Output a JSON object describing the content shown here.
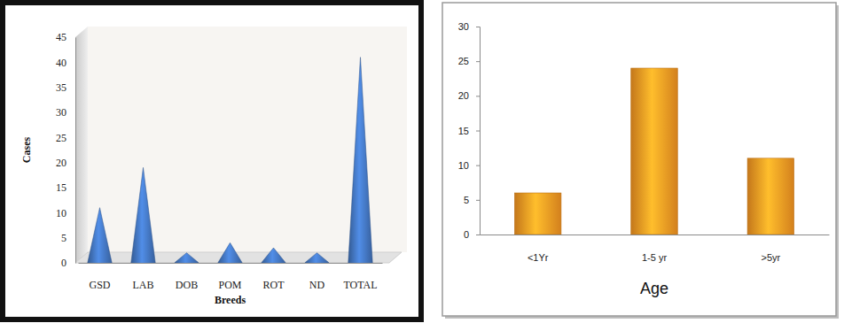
{
  "chart_data": [
    {
      "type": "cone",
      "xlabel": "Breeds",
      "ylabel": "Cases",
      "categories": [
        "GSD",
        "LAB",
        "DOB",
        "POM",
        "ROT",
        "ND",
        "TOTAL"
      ],
      "values": [
        11,
        19,
        2,
        4,
        3,
        2,
        41
      ],
      "color": "#3f6fb5",
      "ylim": [
        0,
        45
      ],
      "yticks": [
        0,
        5,
        10,
        15,
        20,
        25,
        30,
        35,
        40,
        45
      ],
      "grid": false
    },
    {
      "type": "bar",
      "xlabel": "Age",
      "categories": [
        "<1Yr",
        "1-5 yr",
        ">5yr"
      ],
      "values": [
        6,
        24,
        11
      ],
      "color": "#f39422",
      "ylim": [
        0,
        30
      ],
      "yticks": [
        0,
        5,
        10,
        15,
        20,
        25,
        30
      ],
      "grid": false
    }
  ]
}
